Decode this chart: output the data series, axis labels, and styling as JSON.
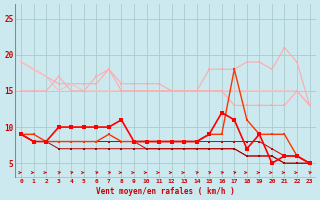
{
  "x": [
    0,
    1,
    2,
    3,
    4,
    5,
    6,
    7,
    8,
    9,
    10,
    11,
    12,
    13,
    14,
    15,
    16,
    17,
    18,
    19,
    20,
    21,
    22,
    23
  ],
  "background_color": "#cce9f0",
  "grid_color": "#aacccc",
  "xlabel": "Vent moyen/en rafales ( km/h )",
  "yticks": [
    5,
    10,
    15,
    20,
    25
  ],
  "ylim": [
    3.0,
    27.0
  ],
  "xlim": [
    -0.5,
    23.5
  ],
  "line1": [
    19,
    18,
    17,
    16,
    16,
    16,
    16,
    18,
    16,
    16,
    16,
    16,
    15,
    15,
    15,
    18,
    18,
    18,
    19,
    19,
    18,
    21,
    19,
    13
  ],
  "line1_color": "#ffaaaa",
  "line2": [
    19,
    18,
    17,
    15,
    16,
    15,
    15,
    15,
    15,
    15,
    15,
    15,
    15,
    15,
    15,
    15,
    15,
    15,
    15,
    15,
    15,
    15,
    15,
    13
  ],
  "line2_color": "#ffbbbb",
  "line3": [
    15,
    15,
    15,
    17,
    15,
    15,
    17,
    18,
    15,
    15,
    15,
    15,
    15,
    15,
    15,
    15,
    15,
    13,
    13,
    13,
    13,
    13,
    15,
    13
  ],
  "line3_color": "#ffaaaa",
  "line4": [
    9,
    9,
    8,
    8,
    8,
    8,
    8,
    9,
    8,
    8,
    8,
    8,
    8,
    8,
    8,
    9,
    9,
    18,
    11,
    9,
    9,
    9,
    6,
    5
  ],
  "line4_color": "#ff3300",
  "line5": [
    9,
    8,
    8,
    8,
    8,
    8,
    8,
    8,
    8,
    8,
    8,
    8,
    8,
    8,
    8,
    8,
    8,
    8,
    8,
    8,
    7,
    6,
    6,
    5
  ],
  "line5_color": "#cc0000",
  "line6": [
    9,
    8,
    8,
    8,
    8,
    8,
    8,
    8,
    8,
    8,
    7,
    7,
    7,
    7,
    7,
    7,
    7,
    7,
    6,
    6,
    6,
    5,
    5,
    5
  ],
  "line6_color": "#cc0000",
  "line7": [
    9,
    8,
    8,
    7,
    7,
    7,
    7,
    7,
    7,
    7,
    7,
    7,
    7,
    7,
    7,
    7,
    7,
    7,
    6,
    6,
    6,
    5,
    5,
    5
  ],
  "line7_color": "#aa0000",
  "line8": [
    9,
    8,
    8,
    10,
    10,
    10,
    10,
    10,
    11,
    8,
    8,
    8,
    8,
    8,
    8,
    9,
    12,
    11,
    7,
    9,
    5,
    6,
    6,
    5
  ],
  "line8_color": "#ff0000",
  "arrow_angles": [
    0,
    0,
    0,
    45,
    45,
    0,
    45,
    45,
    0,
    0,
    0,
    0,
    0,
    0,
    45,
    45,
    45,
    45,
    0,
    0,
    0,
    0,
    0,
    45
  ],
  "arrow_color": "#cc0000"
}
